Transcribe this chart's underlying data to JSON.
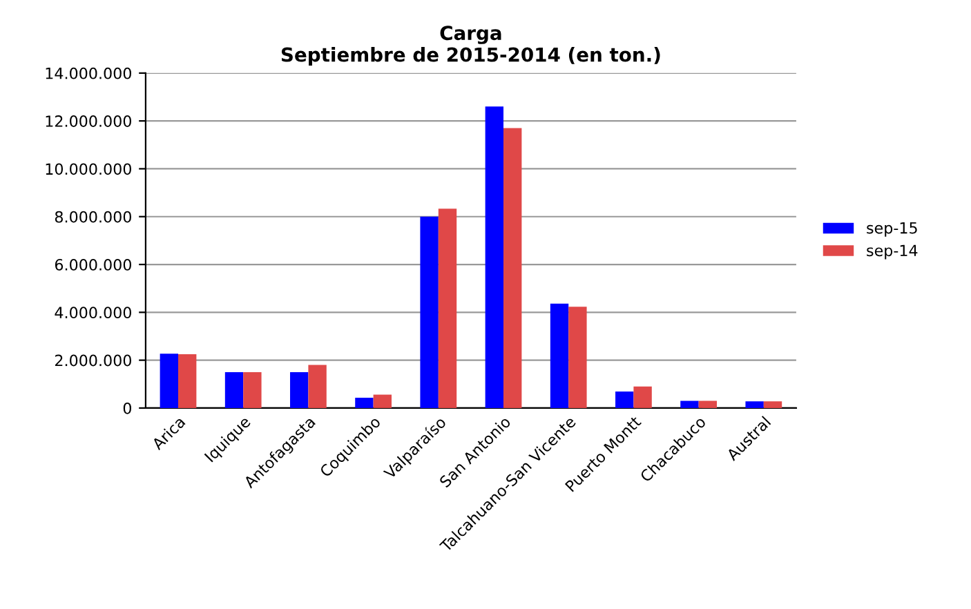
{
  "chart_data": {
    "type": "bar",
    "title": "Carga\nSeptiembre de 2015-2014 (en ton.)",
    "categories": [
      "Arica",
      "Iquique",
      "Antofagasta",
      "Coquimbo",
      "Valparaíso",
      "San Antonio",
      "Talcahuano-San Vicente",
      "Puerto Montt",
      "Chacabuco",
      "Austral"
    ],
    "series": [
      {
        "name": "sep-15",
        "color": "#0000ff",
        "values": [
          2270000,
          1500000,
          1500000,
          430000,
          8000000,
          12600000,
          4360000,
          690000,
          300000,
          280000
        ]
      },
      {
        "name": "sep-14",
        "color": "#e04848",
        "values": [
          2250000,
          1500000,
          1800000,
          560000,
          8330000,
          11700000,
          4230000,
          900000,
          300000,
          280000
        ]
      }
    ],
    "ylim": [
      0,
      14000000
    ],
    "yticks": [
      {
        "value": 0,
        "label": "0"
      },
      {
        "value": 2000000,
        "label": "2.000.000"
      },
      {
        "value": 4000000,
        "label": "4.000.000"
      },
      {
        "value": 6000000,
        "label": "6.000.000"
      },
      {
        "value": 8000000,
        "label": "8.000.000"
      },
      {
        "value": 10000000,
        "label": "10.000.000"
      },
      {
        "value": 12000000,
        "label": "12.000.000"
      },
      {
        "value": 14000000,
        "label": "14.000.000"
      }
    ],
    "grid": "y",
    "legend": "right"
  }
}
